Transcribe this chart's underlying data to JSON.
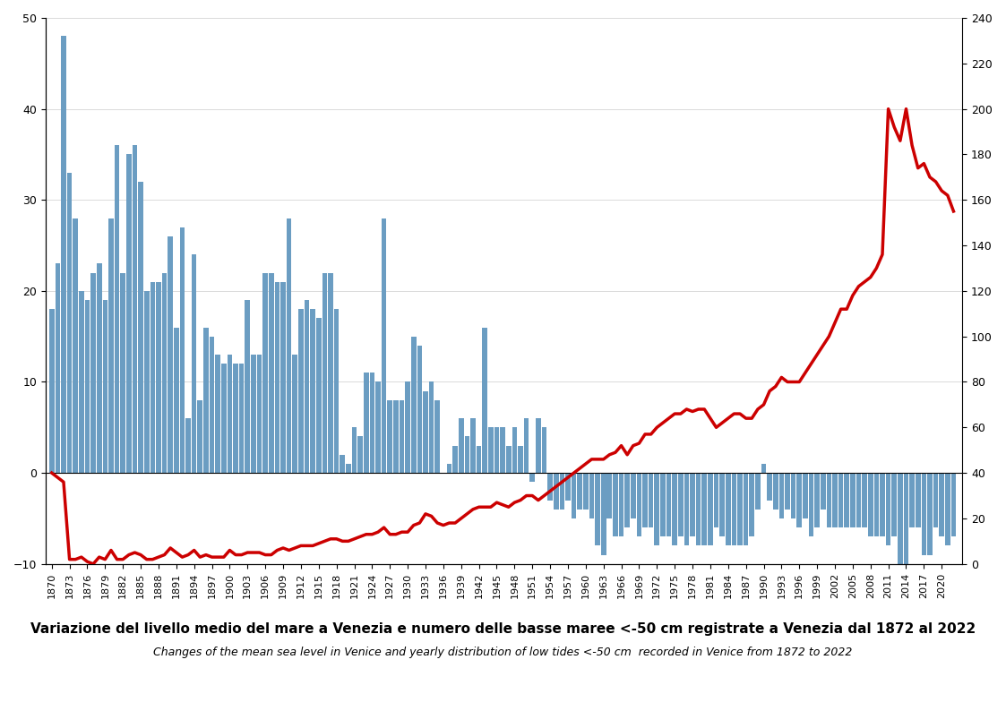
{
  "title_it": "Variazione del livello medio del mare a Venezia e numero delle basse maree <-50 cm registrate a Venezia dal 1872 al 2022",
  "title_en": "Changes of the mean sea level in Venice and yearly distribution of low tides <-50 cm  recorded in Venice from 1872 to 2022",
  "bar_color": "#6b9dc2",
  "line_color": "#cc0000",
  "bg_color": "#ffffff",
  "ylim_left": [
    -10,
    50
  ],
  "ylim_right": [
    0,
    240
  ],
  "years": [
    1870,
    1871,
    1872,
    1873,
    1874,
    1875,
    1876,
    1877,
    1878,
    1879,
    1880,
    1881,
    1882,
    1883,
    1884,
    1885,
    1886,
    1887,
    1888,
    1889,
    1890,
    1891,
    1892,
    1893,
    1894,
    1895,
    1896,
    1897,
    1898,
    1899,
    1900,
    1901,
    1902,
    1903,
    1904,
    1905,
    1906,
    1907,
    1908,
    1909,
    1910,
    1911,
    1912,
    1913,
    1914,
    1915,
    1916,
    1917,
    1918,
    1919,
    1920,
    1921,
    1922,
    1923,
    1924,
    1925,
    1926,
    1927,
    1928,
    1929,
    1930,
    1931,
    1932,
    1933,
    1934,
    1935,
    1936,
    1937,
    1938,
    1939,
    1940,
    1941,
    1942,
    1943,
    1944,
    1945,
    1946,
    1947,
    1948,
    1949,
    1950,
    1951,
    1952,
    1953,
    1954,
    1955,
    1956,
    1957,
    1958,
    1959,
    1960,
    1961,
    1962,
    1963,
    1964,
    1965,
    1966,
    1967,
    1968,
    1969,
    1970,
    1971,
    1972,
    1973,
    1974,
    1975,
    1976,
    1977,
    1978,
    1979,
    1980,
    1981,
    1982,
    1983,
    1984,
    1985,
    1986,
    1987,
    1988,
    1989,
    1990,
    1991,
    1992,
    1993,
    1994,
    1995,
    1996,
    1997,
    1998,
    1999,
    2000,
    2001,
    2002,
    2003,
    2004,
    2005,
    2006,
    2007,
    2008,
    2009,
    2010,
    2011,
    2012,
    2013,
    2014,
    2015,
    2016,
    2017,
    2018,
    2019,
    2020,
    2021,
    2022
  ],
  "bar_values": [
    18,
    23,
    48,
    33,
    28,
    20,
    19,
    22,
    23,
    19,
    28,
    36,
    22,
    35,
    36,
    32,
    20,
    21,
    21,
    22,
    26,
    16,
    27,
    6,
    24,
    8,
    16,
    15,
    13,
    12,
    13,
    12,
    12,
    19,
    13,
    13,
    22,
    22,
    21,
    21,
    28,
    13,
    18,
    19,
    18,
    17,
    22,
    22,
    18,
    2,
    1,
    5,
    4,
    11,
    11,
    10,
    28,
    8,
    8,
    8,
    10,
    15,
    14,
    9,
    10,
    8,
    0,
    1,
    3,
    6,
    4,
    6,
    3,
    16,
    5,
    5,
    5,
    3,
    5,
    3,
    6,
    -1,
    6,
    5,
    -3,
    -4,
    -4,
    -3,
    -5,
    -4,
    -4,
    -5,
    -8,
    -9,
    -5,
    -7,
    -7,
    -6,
    -5,
    -7,
    -6,
    -6,
    -8,
    -7,
    -7,
    -8,
    -7,
    -8,
    -7,
    -8,
    -8,
    -8,
    -6,
    -7,
    -8,
    -8,
    -8,
    -8,
    -7,
    -4,
    1,
    -3,
    -4,
    -5,
    -4,
    -5,
    -6,
    -5,
    -7,
    -6,
    -4,
    -6,
    -6,
    -6,
    -6,
    -6,
    -6,
    -6,
    -7,
    -7,
    -7,
    -8,
    -7,
    -10,
    -10,
    -6,
    -6,
    -9,
    -9,
    -6,
    -7,
    -8,
    -7
  ],
  "line_values_cm": [
    40,
    38,
    36,
    2,
    2,
    3,
    1,
    0,
    3,
    2,
    6,
    2,
    2,
    4,
    5,
    4,
    2,
    2,
    3,
    4,
    7,
    5,
    3,
    4,
    6,
    3,
    4,
    3,
    3,
    3,
    6,
    4,
    4,
    5,
    5,
    5,
    4,
    4,
    6,
    7,
    6,
    7,
    8,
    8,
    8,
    9,
    10,
    11,
    11,
    10,
    10,
    11,
    12,
    13,
    13,
    14,
    16,
    13,
    13,
    14,
    14,
    17,
    18,
    22,
    21,
    18,
    17,
    18,
    18,
    20,
    22,
    24,
    25,
    25,
    25,
    27,
    26,
    25,
    27,
    28,
    30,
    30,
    28,
    30,
    32,
    34,
    36,
    38,
    40,
    42,
    44,
    46,
    46,
    46,
    48,
    49,
    52,
    48,
    52,
    53,
    57,
    57,
    60,
    62,
    64,
    66,
    66,
    68,
    67,
    68,
    68,
    64,
    60,
    62,
    64,
    66,
    66,
    64,
    64,
    68,
    70,
    76,
    78,
    82,
    80,
    80,
    80,
    84,
    88,
    92,
    96,
    100,
    106,
    112,
    112,
    118,
    122,
    124,
    126,
    130,
    136,
    200,
    192,
    186,
    200,
    184,
    174,
    176,
    170,
    168,
    164,
    162,
    155
  ]
}
